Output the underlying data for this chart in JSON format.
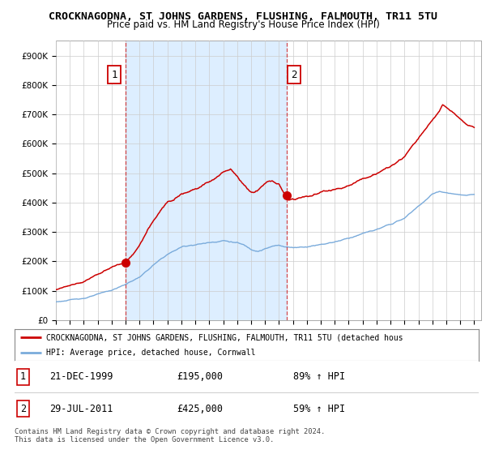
{
  "title": "CROCKNAGODNA, ST JOHNS GARDENS, FLUSHING, FALMOUTH, TR11 5TU",
  "subtitle": "Price paid vs. HM Land Registry's House Price Index (HPI)",
  "title_fontsize": 9.5,
  "subtitle_fontsize": 8.5,
  "background_color": "#ffffff",
  "plot_bg_color": "#ffffff",
  "highlight_bg_color": "#ddeeff",
  "grid_color": "#cccccc",
  "hpi_color": "#7aabdb",
  "price_color": "#cc0000",
  "ylim": [
    0,
    950000
  ],
  "yticks": [
    0,
    100000,
    200000,
    300000,
    400000,
    500000,
    600000,
    700000,
    800000,
    900000
  ],
  "ytick_labels": [
    "£0",
    "£100K",
    "£200K",
    "£300K",
    "£400K",
    "£500K",
    "£600K",
    "£700K",
    "£800K",
    "£900K"
  ],
  "xlim_left": 1995.0,
  "xlim_right": 2025.5,
  "sale1_x": 1999.97,
  "sale1_y": 195000,
  "sale1_label": "1",
  "sale2_x": 2011.58,
  "sale2_y": 425000,
  "sale2_label": "2",
  "legend_line1": "CROCKNAGODNA, ST JOHNS GARDENS, FLUSHING, FALMOUTH, TR11 5TU (detached hous",
  "legend_line2": "HPI: Average price, detached house, Cornwall",
  "table_row1_num": "1",
  "table_row1_date": "21-DEC-1999",
  "table_row1_price": "£195,000",
  "table_row1_hpi": "89% ↑ HPI",
  "table_row2_num": "2",
  "table_row2_date": "29-JUL-2011",
  "table_row2_price": "£425,000",
  "table_row2_hpi": "59% ↑ HPI",
  "footer": "Contains HM Land Registry data © Crown copyright and database right 2024.\nThis data is licensed under the Open Government Licence v3.0."
}
